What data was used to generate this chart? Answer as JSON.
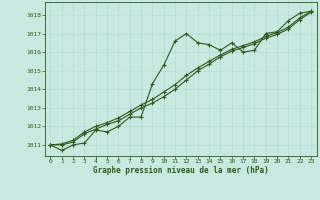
{
  "title": "Graphe pression niveau de la mer (hPa)",
  "background_color": "#c8e8e0",
  "grid_color": "#aad4cc",
  "line_color": "#2d5a1e",
  "xlim": [
    -0.5,
    23.5
  ],
  "ylim": [
    1010.4,
    1018.7
  ],
  "xticks": [
    0,
    1,
    2,
    3,
    4,
    5,
    6,
    7,
    8,
    9,
    10,
    11,
    12,
    13,
    14,
    15,
    16,
    17,
    18,
    19,
    20,
    21,
    22,
    23
  ],
  "yticks": [
    1011,
    1012,
    1013,
    1014,
    1015,
    1016,
    1017,
    1018
  ],
  "series1": [
    1011.0,
    1010.7,
    1011.0,
    1011.1,
    1011.8,
    1011.7,
    1012.0,
    1012.5,
    1012.5,
    1014.3,
    1015.3,
    1016.6,
    1017.0,
    1016.5,
    1016.4,
    1016.1,
    1016.5,
    1016.0,
    1016.1,
    1017.0,
    1017.1,
    1017.7,
    1018.1,
    1018.2
  ],
  "series2": [
    1011.0,
    1011.0,
    1011.15,
    1011.6,
    1011.85,
    1012.1,
    1012.3,
    1012.65,
    1013.0,
    1013.25,
    1013.6,
    1014.0,
    1014.5,
    1015.0,
    1015.35,
    1015.75,
    1016.05,
    1016.25,
    1016.45,
    1016.75,
    1016.95,
    1017.25,
    1017.75,
    1018.15
  ],
  "series3": [
    1011.0,
    1011.05,
    1011.25,
    1011.7,
    1012.0,
    1012.2,
    1012.45,
    1012.8,
    1013.15,
    1013.45,
    1013.85,
    1014.25,
    1014.75,
    1015.15,
    1015.5,
    1015.85,
    1016.15,
    1016.35,
    1016.55,
    1016.85,
    1017.05,
    1017.35,
    1017.85,
    1018.2
  ]
}
